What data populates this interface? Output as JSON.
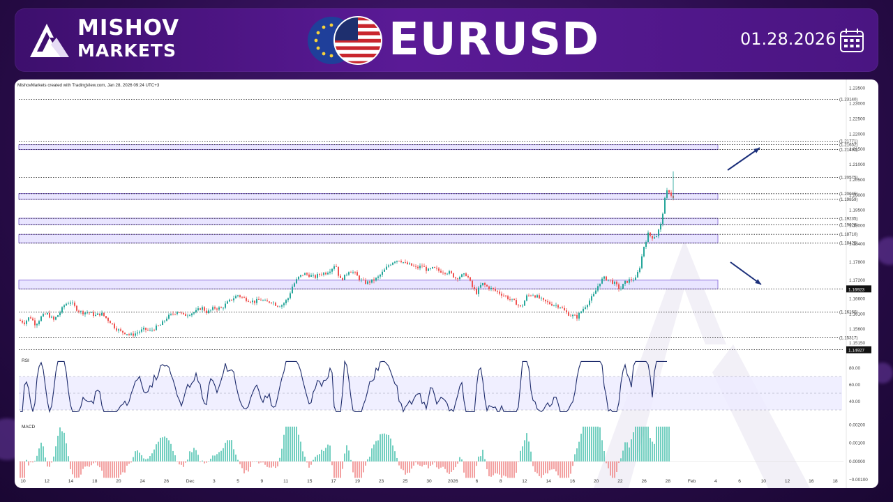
{
  "brand": {
    "line1": "MISHOV",
    "line2": "MARKETS",
    "logo_icon": "mountain-logo-icon"
  },
  "title": "EURUSD",
  "date": "01.28.2026",
  "calendar_icon": "calendar-icon",
  "chart_data": {
    "type": "candlestick",
    "watermark_text": "MishovMarkets created with TradingView.com, Jan 28, 2026 09:24 UTC+3",
    "price_axis": {
      "min": 1.1485,
      "max": 1.2354,
      "ticks": [
        "1.23500",
        "1.23000",
        "1.22500",
        "1.22000",
        "1.21500",
        "1.21000",
        "1.20500",
        "1.20000",
        "1.19500",
        "1.19000",
        "1.18400",
        "1.17800",
        "1.17200",
        "1.16600",
        "1.16100",
        "1.15600",
        "1.15150"
      ]
    },
    "level_lines": [
      {
        "label": "(1.23140)",
        "value": 1.2314
      },
      {
        "label": "(1.21771)",
        "value": 1.21771
      },
      {
        "label": "(1.21652)",
        "value": 1.21652
      },
      {
        "label": "(1.21492)",
        "value": 1.21492
      },
      {
        "label": "(1.20575)",
        "value": 1.20575
      },
      {
        "label": "(1.20045)",
        "value": 1.20045
      },
      {
        "label": "(1.19859)",
        "value": 1.19859
      },
      {
        "label": "(1.19235)",
        "value": 1.19235
      },
      {
        "label": "(1.19028)",
        "value": 1.19028
      },
      {
        "label": "(1.18710)",
        "value": 1.1871
      },
      {
        "label": "(1.18425)",
        "value": 1.18425
      },
      {
        "label": "(1.16160)",
        "value": 1.1616
      },
      {
        "label": "(1.15317)",
        "value": 1.15317
      }
    ],
    "price_badges": [
      {
        "label": "1.16923",
        "value": 1.16923
      },
      {
        "label": "1.14927",
        "value": 1.14927
      }
    ],
    "zones": [
      [
        1.2149,
        1.2165
      ],
      [
        1.1986,
        1.2005
      ],
      [
        1.1903,
        1.1924
      ],
      [
        1.1843,
        1.1871
      ],
      [
        1.1692,
        1.1721
      ]
    ],
    "x_labels": [
      "10",
      "12",
      "14",
      "18",
      "20",
      "24",
      "26",
      "Dec",
      "3",
      "5",
      "9",
      "11",
      "15",
      "17",
      "19",
      "23",
      "25",
      "30",
      "2026",
      "6",
      "8",
      "12",
      "14",
      "16",
      "20",
      "22",
      "26",
      "28",
      "Feb",
      "4",
      "6",
      "10",
      "12",
      "16",
      "18"
    ],
    "price_path": [
      [
        0,
        1.159
      ],
      [
        8,
        1.1582
      ],
      [
        16,
        1.1602
      ],
      [
        24,
        1.1575
      ],
      [
        32,
        1.16
      ],
      [
        40,
        1.1612
      ],
      [
        50,
        1.159
      ],
      [
        58,
        1.1612
      ],
      [
        66,
        1.1642
      ],
      [
        74,
        1.165
      ],
      [
        82,
        1.1628
      ],
      [
        90,
        1.1615
      ],
      [
        100,
        1.1615
      ],
      [
        110,
        1.1605
      ],
      [
        118,
        1.1612
      ],
      [
        126,
        1.1595
      ],
      [
        132,
        1.1582
      ],
      [
        138,
        1.1565
      ],
      [
        146,
        1.1552
      ],
      [
        154,
        1.1548
      ],
      [
        160,
        1.154
      ],
      [
        166,
        1.1545
      ],
      [
        172,
        1.1552
      ],
      [
        180,
        1.156
      ],
      [
        188,
        1.1555
      ],
      [
        196,
        1.1565
      ],
      [
        204,
        1.1575
      ],
      [
        212,
        1.1598
      ],
      [
        220,
        1.161
      ],
      [
        228,
        1.162
      ],
      [
        236,
        1.1605
      ],
      [
        246,
        1.1612
      ],
      [
        254,
        1.1618
      ],
      [
        262,
        1.1632
      ],
      [
        270,
        1.1615
      ],
      [
        280,
        1.163
      ],
      [
        290,
        1.1628
      ],
      [
        298,
        1.1645
      ],
      [
        306,
        1.166
      ],
      [
        314,
        1.1672
      ],
      [
        322,
        1.1662
      ],
      [
        330,
        1.1655
      ],
      [
        338,
        1.165
      ],
      [
        346,
        1.1658
      ],
      [
        354,
        1.1648
      ],
      [
        362,
        1.1652
      ],
      [
        370,
        1.1638
      ],
      [
        378,
        1.164
      ],
      [
        386,
        1.1662
      ],
      [
        392,
        1.17
      ],
      [
        400,
        1.1728
      ],
      [
        408,
        1.1742
      ],
      [
        416,
        1.1738
      ],
      [
        424,
        1.173
      ],
      [
        432,
        1.1742
      ],
      [
        440,
        1.1745
      ],
      [
        448,
        1.1758
      ],
      [
        454,
        1.1775
      ],
      [
        460,
        1.1722
      ],
      [
        466,
        1.173
      ],
      [
        474,
        1.1755
      ],
      [
        482,
        1.1742
      ],
      [
        490,
        1.172
      ],
      [
        498,
        1.1712
      ],
      [
        506,
        1.1718
      ],
      [
        514,
        1.1728
      ],
      [
        522,
        1.1748
      ],
      [
        530,
        1.177
      ],
      [
        538,
        1.1785
      ],
      [
        546,
        1.1788
      ],
      [
        554,
        1.1775
      ],
      [
        562,
        1.177
      ],
      [
        570,
        1.176
      ],
      [
        578,
        1.1768
      ],
      [
        586,
        1.1752
      ],
      [
        594,
        1.176
      ],
      [
        602,
        1.1752
      ],
      [
        610,
        1.1748
      ],
      [
        618,
        1.1745
      ],
      [
        626,
        1.1728
      ],
      [
        634,
        1.1735
      ],
      [
        642,
        1.174
      ],
      [
        650,
        1.1698
      ],
      [
        656,
        1.168
      ],
      [
        664,
        1.171
      ],
      [
        672,
        1.1698
      ],
      [
        680,
        1.169
      ],
      [
        688,
        1.168
      ],
      [
        696,
        1.167
      ],
      [
        704,
        1.1658
      ],
      [
        712,
        1.1648
      ],
      [
        720,
        1.163
      ],
      [
        728,
        1.1668
      ],
      [
        736,
        1.1675
      ],
      [
        744,
        1.1665
      ],
      [
        752,
        1.1652
      ],
      [
        760,
        1.1645
      ],
      [
        768,
        1.164
      ],
      [
        776,
        1.1635
      ],
      [
        784,
        1.1615
      ],
      [
        792,
        1.1605
      ],
      [
        800,
        1.16
      ],
      [
        808,
        1.1625
      ],
      [
        816,
        1.1648
      ],
      [
        824,
        1.1672
      ],
      [
        832,
        1.1712
      ],
      [
        838,
        1.1728
      ],
      [
        846,
        1.1722
      ],
      [
        854,
        1.171
      ],
      [
        862,
        1.169
      ],
      [
        868,
        1.1712
      ],
      [
        876,
        1.1722
      ],
      [
        884,
        1.1725
      ],
      [
        890,
        1.1765
      ],
      [
        896,
        1.1832
      ],
      [
        902,
        1.1872
      ],
      [
        908,
        1.1862
      ],
      [
        914,
        1.1868
      ],
      [
        920,
        1.1902
      ],
      [
        926,
        1.1985
      ],
      [
        930,
        1.202
      ],
      [
        934,
        1.2005
      ],
      [
        938,
        1.1988
      ],
      [
        940,
        1.2
      ]
    ],
    "rsi": {
      "label": "RSI",
      "ticks": [
        "80.00",
        "60.00",
        "40.00"
      ],
      "band": [
        30,
        70
      ]
    },
    "macd": {
      "label": "MACD",
      "ticks": [
        "0.00200",
        "0.00100",
        "0.00000",
        "−0.00100"
      ]
    },
    "colors": {
      "up": "#26a69a",
      "down": "#ef5350",
      "zone_fill": "#e9e5ff",
      "zone_border": "#7b5bd6",
      "rsi_line": "#1c2a6b",
      "arrow": "#1b2f7a",
      "accent": "#5a1a96"
    }
  }
}
